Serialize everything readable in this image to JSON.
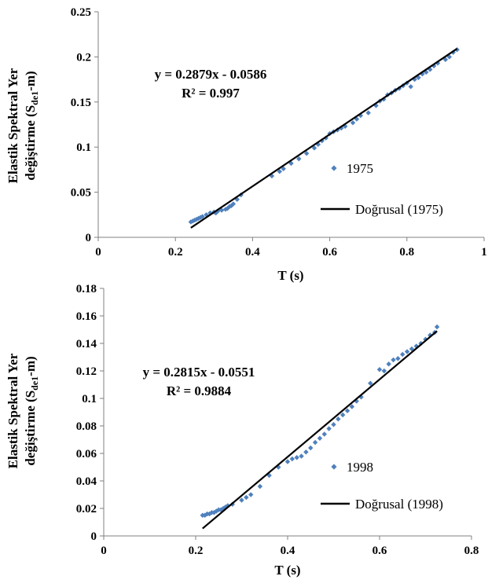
{
  "chart_data": [
    {
      "type": "scatter",
      "xlabel": "T (s)",
      "ylabel_line1": "Elastik Spektral Yer",
      "ylabel_line2_pre": "değiştirme (S",
      "ylabel_line2_sub": "de1",
      "ylabel_line2_post": "-m)",
      "xlim": [
        0,
        1
      ],
      "ylim": [
        0,
        0.25
      ],
      "xticks": [
        0,
        0.2,
        0.4,
        0.6,
        0.8,
        1
      ],
      "xtick_labels": [
        "0",
        "0.2",
        "0.4",
        "0.6",
        "0.8",
        "1"
      ],
      "yticks": [
        0,
        0.05,
        0.1,
        0.15,
        0.2,
        0.25
      ],
      "ytick_labels": [
        "0",
        "0.05",
        "0.1",
        "0.15",
        "0.2",
        "0.25"
      ],
      "grid": false,
      "legend_position": "right",
      "colors": {
        "points": "#4f81bd",
        "trendline": "#000000"
      },
      "equation": "y = 0.2879x - 0.0586",
      "r_squared": "R² = 0.997",
      "series": [
        {
          "name": "1975",
          "x": [
            0.24,
            0.245,
            0.25,
            0.255,
            0.26,
            0.265,
            0.27,
            0.28,
            0.29,
            0.3,
            0.305,
            0.31,
            0.32,
            0.33,
            0.335,
            0.34,
            0.345,
            0.35,
            0.36,
            0.37,
            0.45,
            0.47,
            0.48,
            0.5,
            0.52,
            0.54,
            0.56,
            0.57,
            0.58,
            0.59,
            0.6,
            0.61,
            0.62,
            0.63,
            0.64,
            0.66,
            0.67,
            0.68,
            0.7,
            0.72,
            0.73,
            0.74,
            0.75,
            0.76,
            0.77,
            0.78,
            0.79,
            0.8,
            0.81,
            0.82,
            0.83,
            0.84,
            0.85,
            0.86,
            0.87,
            0.88,
            0.9,
            0.91,
            0.92,
            0.93
          ],
          "y": [
            0.017,
            0.018,
            0.019,
            0.02,
            0.021,
            0.022,
            0.023,
            0.025,
            0.027,
            0.028,
            0.027,
            0.029,
            0.03,
            0.031,
            0.032,
            0.034,
            0.035,
            0.037,
            0.042,
            0.047,
            0.068,
            0.073,
            0.076,
            0.082,
            0.087,
            0.093,
            0.099,
            0.103,
            0.107,
            0.11,
            0.115,
            0.117,
            0.119,
            0.121,
            0.123,
            0.127,
            0.131,
            0.135,
            0.138,
            0.146,
            0.151,
            0.153,
            0.158,
            0.16,
            0.163,
            0.165,
            0.168,
            0.171,
            0.167,
            0.175,
            0.177,
            0.181,
            0.183,
            0.186,
            0.19,
            0.193,
            0.197,
            0.2,
            0.205,
            0.208
          ]
        },
        {
          "name": "Doğrusal (1975)",
          "x": [
            0.24,
            0.93
          ],
          "y": [
            0.0105,
            0.2091
          ]
        }
      ]
    },
    {
      "type": "scatter",
      "xlabel": "T (s)",
      "ylabel_line1": "Elastik Spektral Yer",
      "ylabel_line2_pre": "değiştirme (S",
      "ylabel_line2_sub": "de1",
      "ylabel_line2_post": "-m)",
      "xlim": [
        0,
        0.8
      ],
      "ylim": [
        0,
        0.18
      ],
      "xticks": [
        0,
        0.2,
        0.4,
        0.6,
        0.8
      ],
      "xtick_labels": [
        "0",
        "0.2",
        "0.4",
        "0.6",
        "0.8"
      ],
      "yticks": [
        0,
        0.02,
        0.04,
        0.06,
        0.08,
        0.1,
        0.12,
        0.14,
        0.16,
        0.18
      ],
      "ytick_labels": [
        "0",
        "0.02",
        "0.04",
        "0.06",
        "0.08",
        "0.1",
        "0.12",
        "0.14",
        "0.16",
        "0.18"
      ],
      "grid": false,
      "legend_position": "right",
      "colors": {
        "points": "#4f81bd",
        "trendline": "#000000"
      },
      "equation": "y = 0.2815x - 0.0551",
      "r_squared": "R² = 0.9884",
      "series": [
        {
          "name": "1998",
          "x": [
            0.215,
            0.22,
            0.225,
            0.23,
            0.235,
            0.24,
            0.245,
            0.25,
            0.255,
            0.26,
            0.265,
            0.27,
            0.28,
            0.3,
            0.31,
            0.32,
            0.34,
            0.36,
            0.38,
            0.4,
            0.41,
            0.42,
            0.43,
            0.44,
            0.45,
            0.46,
            0.47,
            0.48,
            0.49,
            0.5,
            0.51,
            0.52,
            0.53,
            0.54,
            0.55,
            0.56,
            0.58,
            0.6,
            0.61,
            0.62,
            0.63,
            0.64,
            0.65,
            0.66,
            0.67,
            0.68,
            0.69,
            0.7,
            0.71,
            0.72,
            0.725
          ],
          "y": [
            0.015,
            0.015,
            0.016,
            0.016,
            0.017,
            0.017,
            0.018,
            0.019,
            0.019,
            0.02,
            0.021,
            0.022,
            0.023,
            0.026,
            0.028,
            0.03,
            0.036,
            0.044,
            0.05,
            0.054,
            0.056,
            0.057,
            0.058,
            0.061,
            0.064,
            0.068,
            0.071,
            0.074,
            0.078,
            0.081,
            0.085,
            0.088,
            0.091,
            0.094,
            0.098,
            0.101,
            0.111,
            0.121,
            0.12,
            0.125,
            0.128,
            0.129,
            0.132,
            0.134,
            0.136,
            0.138,
            0.14,
            0.143,
            0.146,
            0.148,
            0.152
          ]
        },
        {
          "name": "Doğrusal (1998)",
          "x": [
            0.215,
            0.725
          ],
          "y": [
            0.0054,
            0.149
          ]
        }
      ]
    }
  ]
}
